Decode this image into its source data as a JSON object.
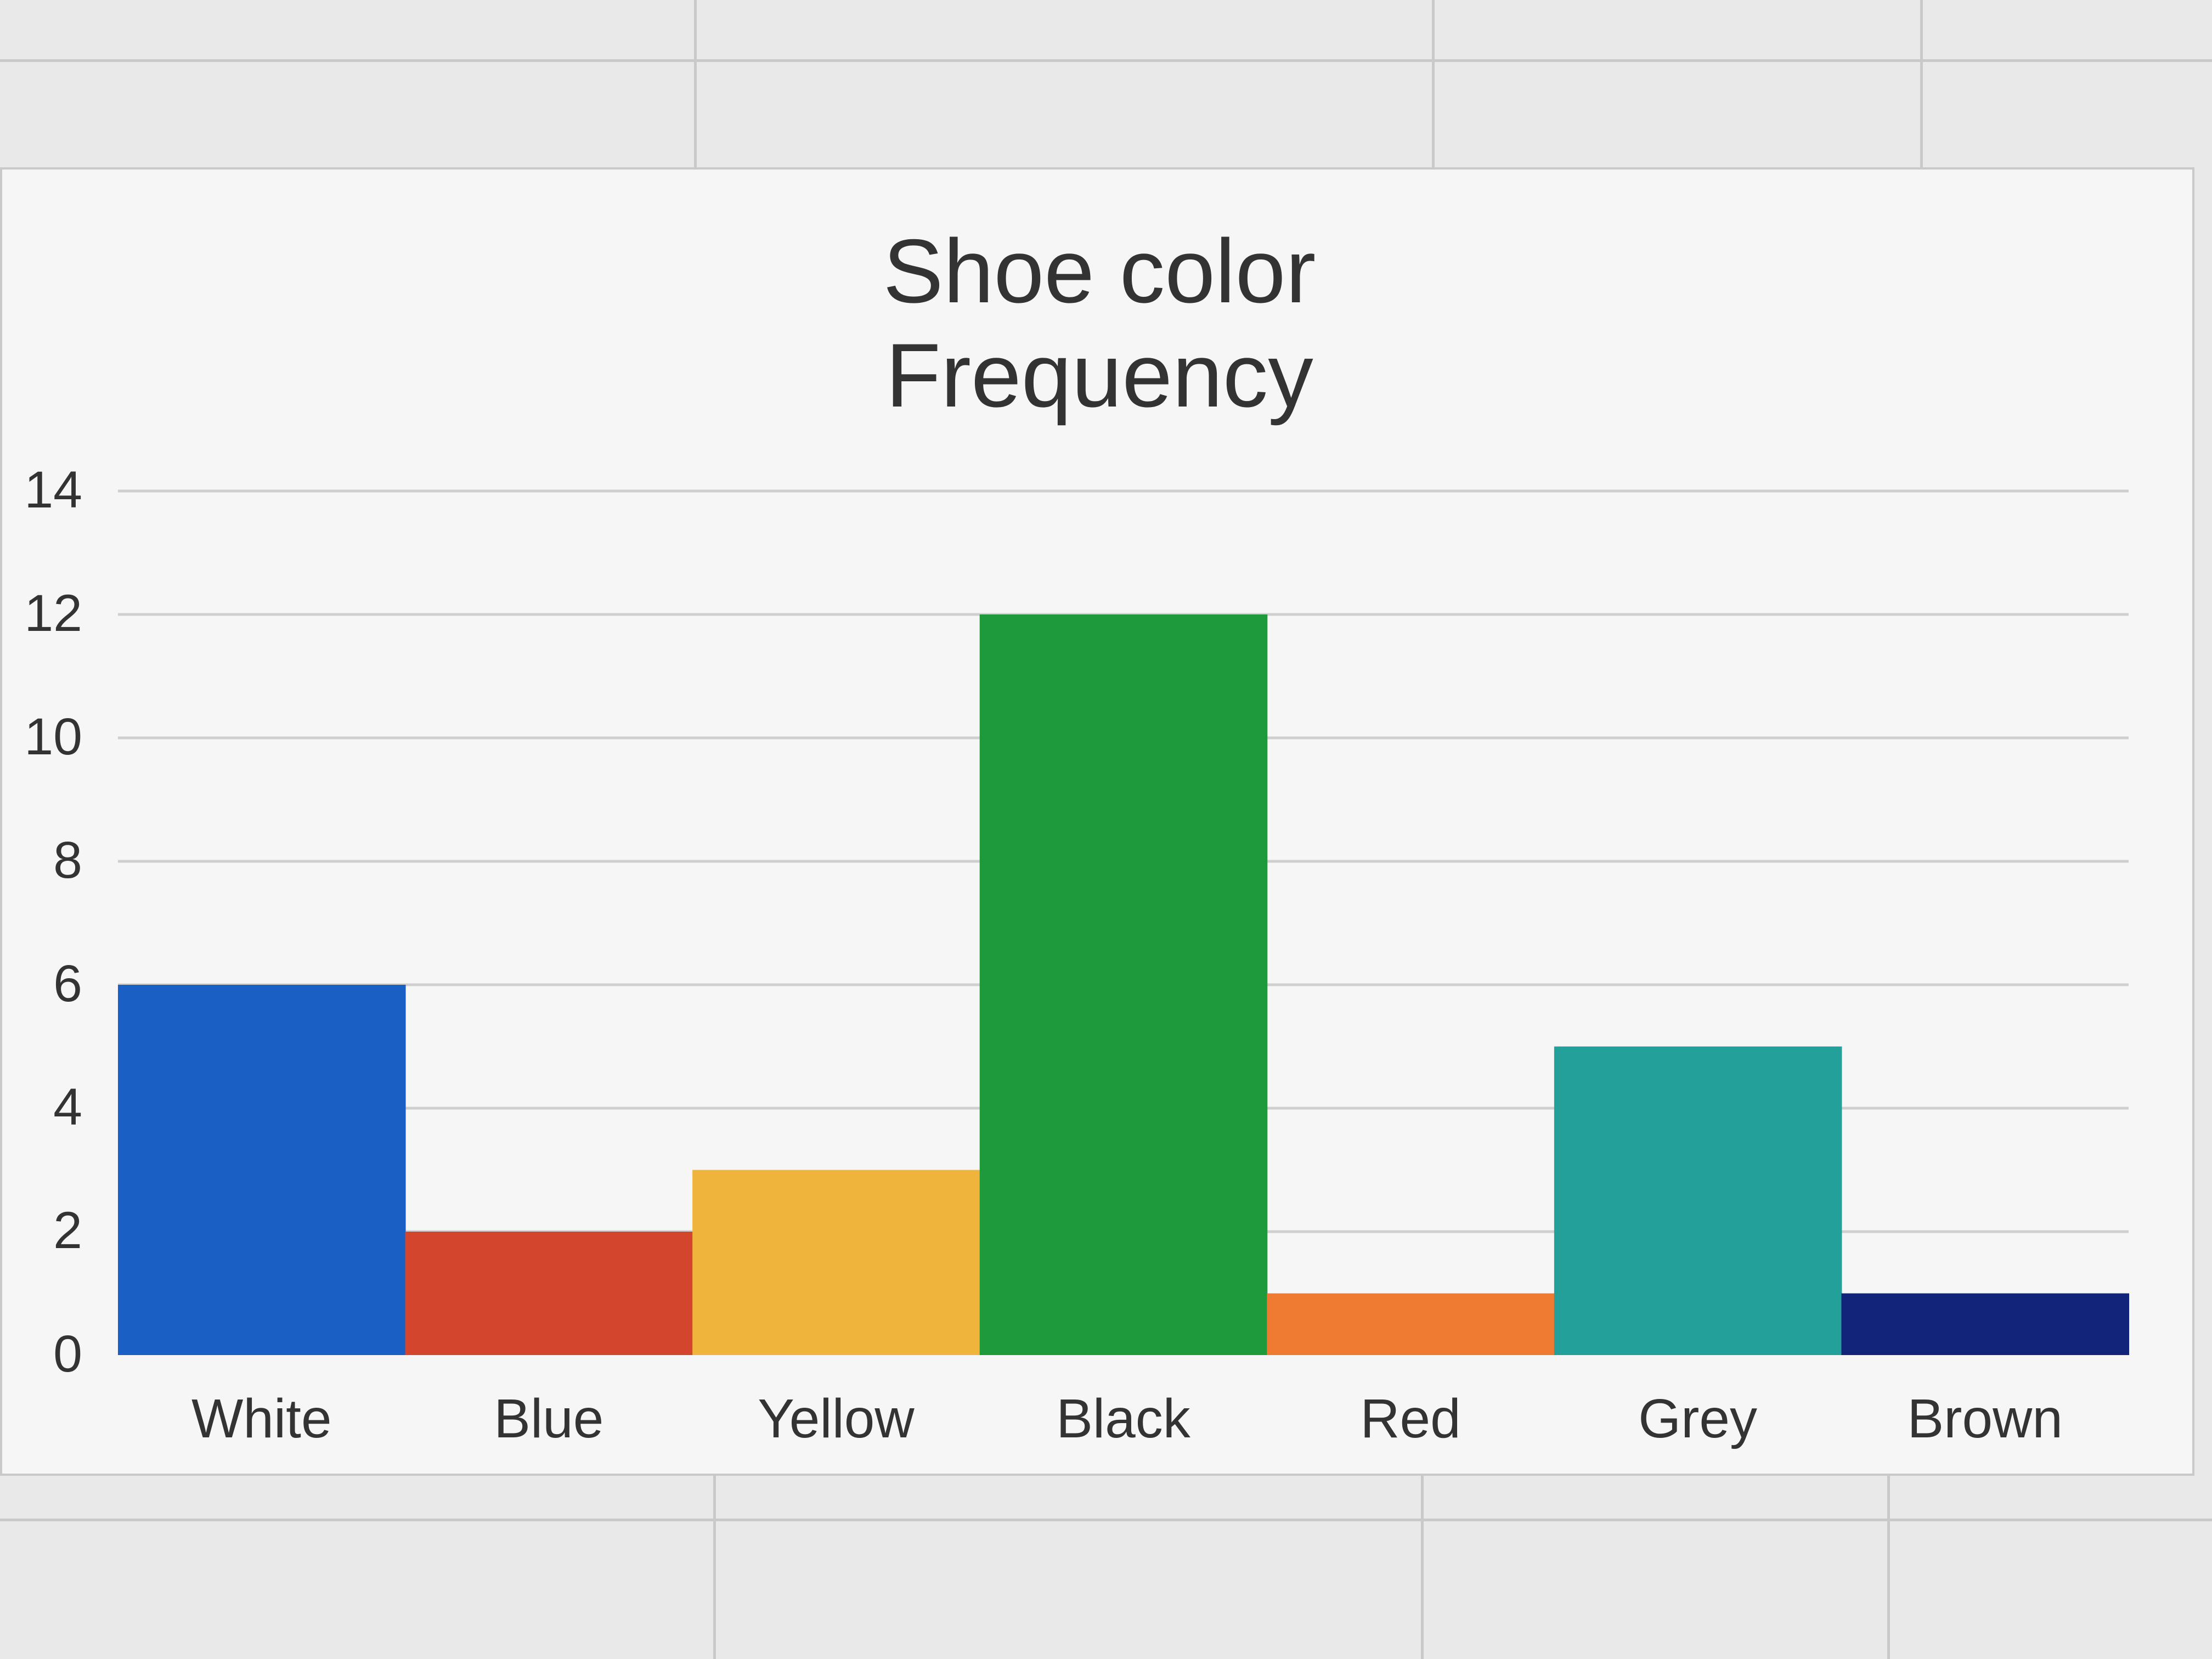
{
  "chart_data": {
    "type": "bar",
    "title_lines": [
      "Shoe color",
      "Frequency"
    ],
    "categories": [
      "White",
      "Blue",
      "Yellow",
      "Black",
      "Red",
      "Grey",
      "Brown"
    ],
    "values": [
      6,
      2,
      3,
      12,
      1,
      5,
      1
    ],
    "bar_colors": [
      "#1a5fc4",
      "#d4452e",
      "#eeb43c",
      "#1e9a3c",
      "#ef7a32",
      "#23a09a",
      "#12247a"
    ],
    "y_ticks": [
      0,
      2,
      4,
      6,
      8,
      10,
      12,
      14
    ],
    "ylim": [
      0,
      14
    ],
    "grid": true,
    "legend": "none",
    "xlabel": "",
    "ylabel": ""
  }
}
